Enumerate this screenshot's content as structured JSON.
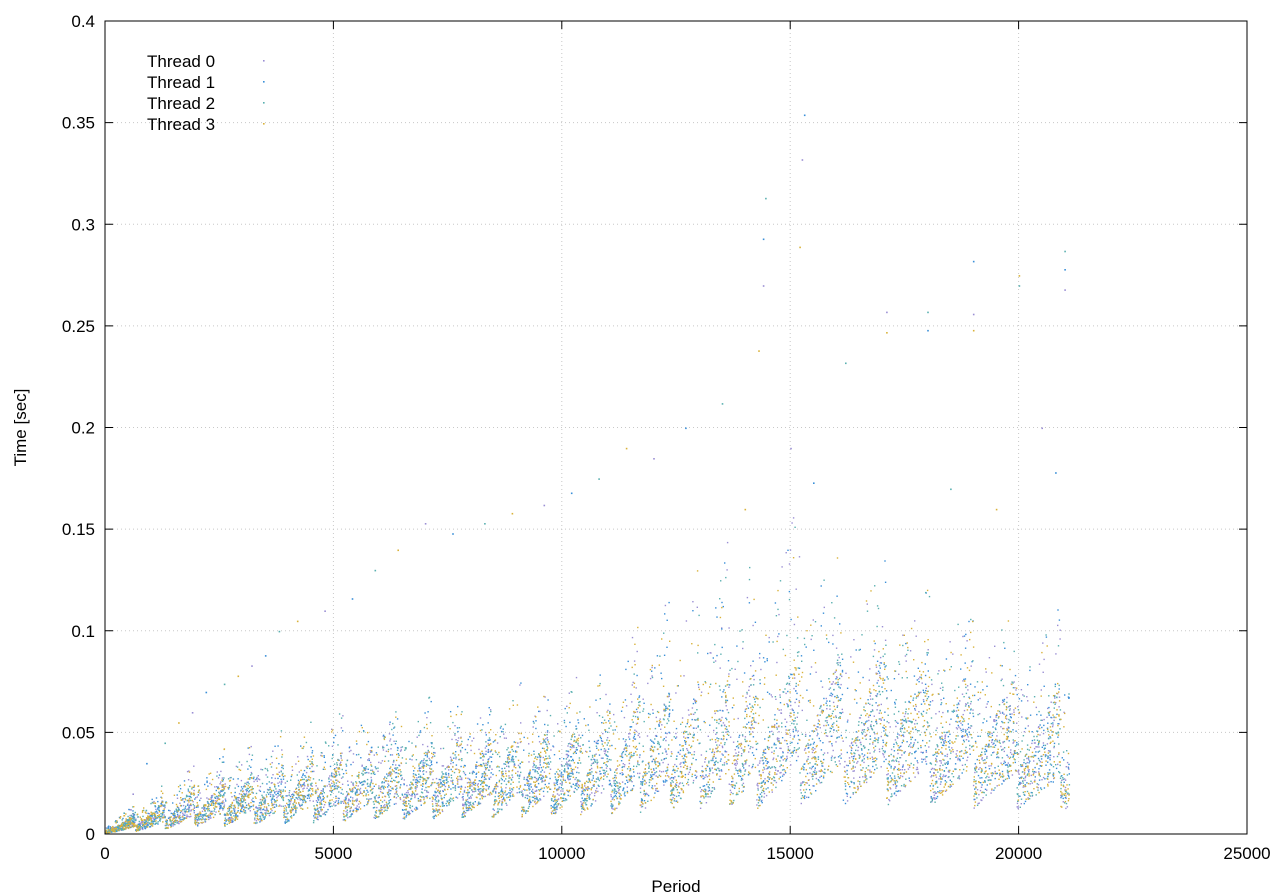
{
  "chart_data": {
    "type": "scatter",
    "title": "",
    "xlabel": "Period",
    "ylabel": "Time [sec]",
    "xlim": [
      0,
      25000
    ],
    "ylim": [
      0,
      0.4
    ],
    "xticks": [
      0,
      5000,
      10000,
      15000,
      20000,
      25000
    ],
    "yticks": [
      0,
      0.05,
      0.1,
      0.15,
      0.2,
      0.25,
      0.3,
      0.35,
      0.4
    ],
    "grid": true,
    "grid_style": "dotted",
    "legend_position": "top-left",
    "series": [
      {
        "name": "Thread 0",
        "color": "#9b8fd4",
        "x_range": [
          0,
          21100
        ]
      },
      {
        "name": "Thread 1",
        "color": "#3a8fd8",
        "x_range": [
          0,
          21100
        ]
      },
      {
        "name": "Thread 2",
        "color": "#5ab0b0",
        "x_range": [
          0,
          21100
        ]
      },
      {
        "name": "Thread 3",
        "color": "#d9b23a",
        "x_range": [
          0,
          21100
        ]
      }
    ],
    "trend": {
      "description_points_x": [
        0,
        2000,
        5000,
        10000,
        14000,
        15000,
        18000,
        21100
      ],
      "description_points_median_y": [
        0.002,
        0.012,
        0.02,
        0.028,
        0.04,
        0.045,
        0.045,
        0.035
      ],
      "description_points_upper_y": [
        0.005,
        0.03,
        0.05,
        0.065,
        0.12,
        0.13,
        0.1,
        0.09
      ]
    },
    "outliers": [
      {
        "x": 600,
        "y": 0.02
      },
      {
        "x": 900,
        "y": 0.035
      },
      {
        "x": 1300,
        "y": 0.045
      },
      {
        "x": 1600,
        "y": 0.055
      },
      {
        "x": 1900,
        "y": 0.06
      },
      {
        "x": 2200,
        "y": 0.07
      },
      {
        "x": 2600,
        "y": 0.074
      },
      {
        "x": 2900,
        "y": 0.078
      },
      {
        "x": 3200,
        "y": 0.083
      },
      {
        "x": 3500,
        "y": 0.088
      },
      {
        "x": 3800,
        "y": 0.1
      },
      {
        "x": 4200,
        "y": 0.105
      },
      {
        "x": 4800,
        "y": 0.11
      },
      {
        "x": 5400,
        "y": 0.116
      },
      {
        "x": 5900,
        "y": 0.13
      },
      {
        "x": 6400,
        "y": 0.14
      },
      {
        "x": 7000,
        "y": 0.153
      },
      {
        "x": 7600,
        "y": 0.148
      },
      {
        "x": 8300,
        "y": 0.153
      },
      {
        "x": 8900,
        "y": 0.158
      },
      {
        "x": 9600,
        "y": 0.162
      },
      {
        "x": 10200,
        "y": 0.168
      },
      {
        "x": 10800,
        "y": 0.175
      },
      {
        "x": 11400,
        "y": 0.19
      },
      {
        "x": 12000,
        "y": 0.185
      },
      {
        "x": 12700,
        "y": 0.2
      },
      {
        "x": 13500,
        "y": 0.212
      },
      {
        "x": 14300,
        "y": 0.238
      },
      {
        "x": 14400,
        "y": 0.27
      },
      {
        "x": 14400,
        "y": 0.293
      },
      {
        "x": 14450,
        "y": 0.313
      },
      {
        "x": 15200,
        "y": 0.289
      },
      {
        "x": 15250,
        "y": 0.332
      },
      {
        "x": 15300,
        "y": 0.354
      },
      {
        "x": 16200,
        "y": 0.232
      },
      {
        "x": 17100,
        "y": 0.247
      },
      {
        "x": 17100,
        "y": 0.257
      },
      {
        "x": 18000,
        "y": 0.248
      },
      {
        "x": 18000,
        "y": 0.257
      },
      {
        "x": 19000,
        "y": 0.248
      },
      {
        "x": 19000,
        "y": 0.256
      },
      {
        "x": 19000,
        "y": 0.282
      },
      {
        "x": 20000,
        "y": 0.27
      },
      {
        "x": 20000,
        "y": 0.275
      },
      {
        "x": 21000,
        "y": 0.268
      },
      {
        "x": 21000,
        "y": 0.278
      },
      {
        "x": 21000,
        "y": 0.287
      },
      {
        "x": 14000,
        "y": 0.16
      },
      {
        "x": 15000,
        "y": 0.19
      },
      {
        "x": 15500,
        "y": 0.173
      },
      {
        "x": 18500,
        "y": 0.17
      },
      {
        "x": 19500,
        "y": 0.16
      },
      {
        "x": 20500,
        "y": 0.2
      },
      {
        "x": 20800,
        "y": 0.178
      }
    ]
  }
}
